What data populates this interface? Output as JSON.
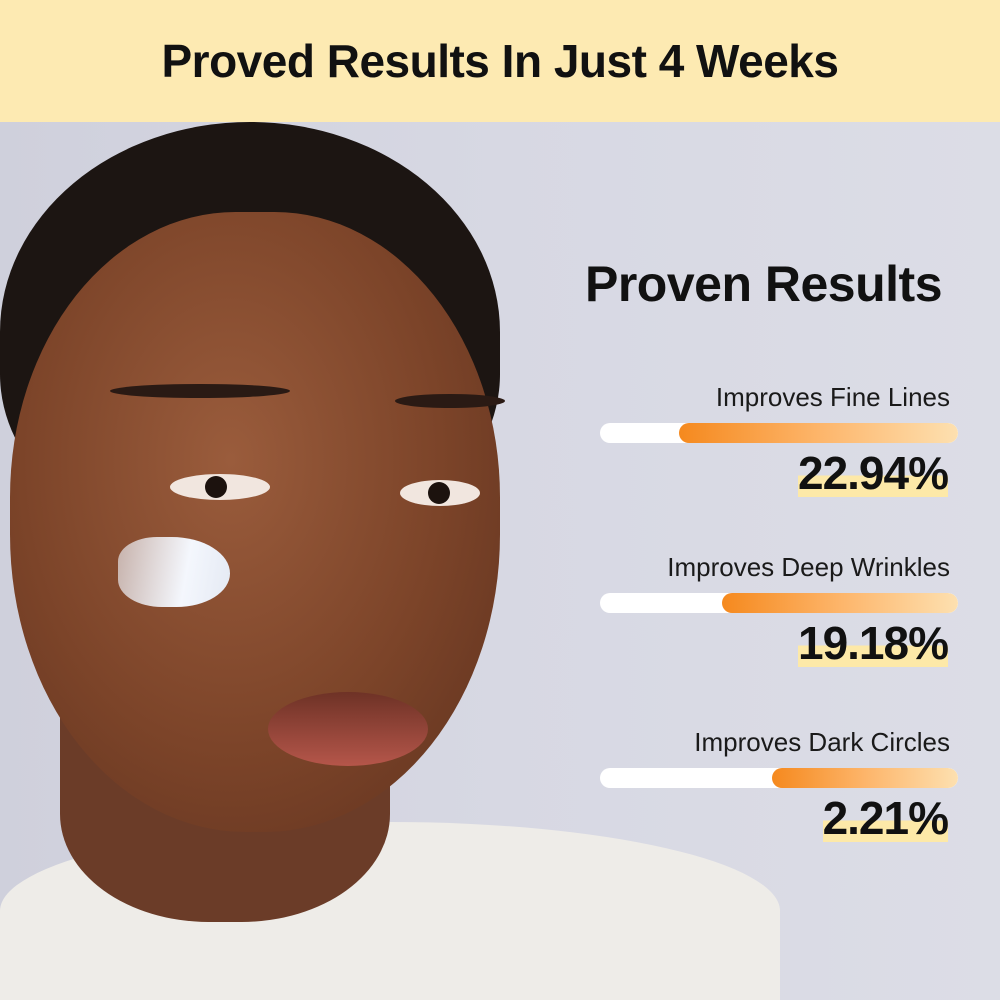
{
  "header": {
    "title": "Proved Results In Just 4 Weeks"
  },
  "colors": {
    "banner": "#fdeab2",
    "background": "#d9dae4",
    "bar_start": "#f5891e",
    "bar_end": "#fde0b0",
    "highlight": "#fde9a8"
  },
  "panel": {
    "title": "Proven Results",
    "metrics": [
      {
        "label": "Improves Fine Lines",
        "value": "22.94%",
        "bar_fill": 0.78
      },
      {
        "label": "Improves Deep Wrinkles",
        "value": "19.18%",
        "bar_fill": 0.66
      },
      {
        "label": "Improves Dark Circles",
        "value": "2.21%",
        "bar_fill": 0.52
      }
    ]
  }
}
